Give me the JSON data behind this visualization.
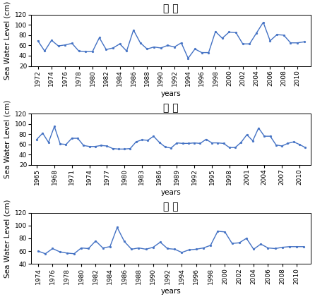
{
  "pohang": {
    "title": "포 항",
    "years": [
      1972,
      1973,
      1974,
      1975,
      1976,
      1977,
      1978,
      1979,
      1980,
      1981,
      1982,
      1983,
      1984,
      1985,
      1986,
      1987,
      1988,
      1989,
      1990,
      1991,
      1992,
      1993,
      1994,
      1995,
      1996,
      1997,
      1998,
      1999,
      2000,
      2001,
      2002,
      2003,
      2004,
      2005,
      2006,
      2007,
      2008,
      2009,
      2010,
      2011
    ],
    "values": [
      69,
      49,
      70,
      59,
      61,
      64,
      49,
      48,
      48,
      75,
      52,
      55,
      63,
      49,
      90,
      65,
      53,
      57,
      55,
      60,
      57,
      65,
      35,
      53,
      46,
      46,
      87,
      74,
      86,
      85,
      63,
      63,
      84,
      105,
      69,
      81,
      80,
      65,
      65,
      67
    ],
    "xticks": [
      1972,
      1974,
      1976,
      1978,
      1980,
      1982,
      1984,
      1986,
      1988,
      1990,
      1992,
      1994,
      1996,
      1998,
      2000,
      2002,
      2004,
      2006,
      2008,
      2010
    ],
    "xlim": [
      1971,
      2012
    ],
    "ylim": [
      20,
      120
    ],
    "yticks": [
      20,
      40,
      60,
      80,
      100,
      120
    ]
  },
  "donghae": {
    "title": "동 해",
    "years": [
      1965,
      1966,
      1967,
      1968,
      1969,
      1970,
      1971,
      1972,
      1973,
      1974,
      1975,
      1976,
      1977,
      1978,
      1979,
      1980,
      1981,
      1982,
      1983,
      1984,
      1985,
      1986,
      1987,
      1988,
      1989,
      1990,
      1991,
      1992,
      1993,
      1994,
      1995,
      1996,
      1997,
      1998,
      1999,
      2000,
      2001,
      2002,
      2003,
      2004,
      2005,
      2006,
      2007,
      2008,
      2009,
      2010,
      2011
    ],
    "values": [
      70,
      82,
      64,
      95,
      61,
      60,
      72,
      72,
      58,
      56,
      56,
      58,
      57,
      52,
      51,
      51,
      52,
      65,
      69,
      68,
      76,
      64,
      55,
      53,
      63,
      62,
      62,
      63,
      62,
      70,
      63,
      63,
      62,
      54,
      54,
      64,
      79,
      67,
      92,
      76,
      76,
      59,
      57,
      62,
      65,
      60,
      54
    ],
    "xticks": [
      1965,
      1968,
      1971,
      1974,
      1977,
      1980,
      1983,
      1986,
      1989,
      1992,
      1995,
      1998,
      2001,
      2004,
      2007,
      2010
    ],
    "xlim": [
      1964,
      2012
    ],
    "ylim": [
      20,
      120
    ],
    "yticks": [
      20,
      40,
      60,
      80,
      100,
      120
    ]
  },
  "sokcho": {
    "title": "속 초",
    "years": [
      1974,
      1975,
      1976,
      1977,
      1978,
      1979,
      1980,
      1981,
      1982,
      1983,
      1984,
      1985,
      1986,
      1987,
      1988,
      1989,
      1990,
      1991,
      1992,
      1993,
      1994,
      1995,
      1996,
      1997,
      1998,
      1999,
      2000,
      2001,
      2002,
      2003,
      2004,
      2005,
      2006,
      2007,
      2008,
      2009,
      2010,
      2011
    ],
    "values": [
      60,
      56,
      64,
      59,
      57,
      56,
      65,
      64,
      76,
      65,
      67,
      97,
      75,
      63,
      65,
      63,
      66,
      74,
      64,
      63,
      58,
      62,
      63,
      65,
      69,
      91,
      90,
      72,
      73,
      80,
      63,
      71,
      65,
      64,
      66,
      67,
      67,
      67
    ],
    "xticks": [
      1974,
      1976,
      1978,
      1980,
      1982,
      1984,
      1986,
      1988,
      1990,
      1992,
      1994,
      1996,
      1998,
      2000,
      2002,
      2004,
      2006,
      2008,
      2010
    ],
    "xlim": [
      1973,
      2012
    ],
    "ylim": [
      40,
      120
    ],
    "yticks": [
      40,
      60,
      80,
      100,
      120
    ]
  },
  "line_color": "#4472C4",
  "marker_style": "o",
  "marker_size": 2.0,
  "line_width": 1.0,
  "ylabel": "Sea Water Level (cm)",
  "xlabel": "years",
  "title_fontsize": 10,
  "tick_fontsize": 6.5,
  "label_fontsize": 7.5
}
